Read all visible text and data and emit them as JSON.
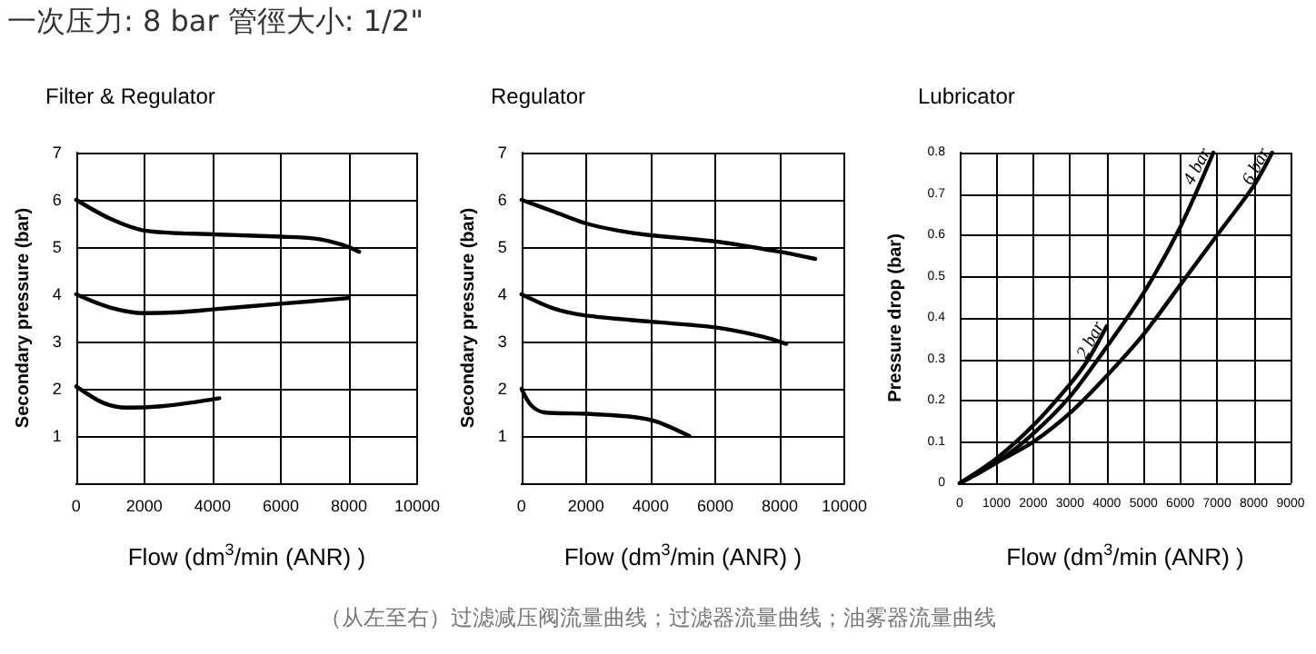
{
  "chart_data": [
    {
      "type": "line",
      "title": "Filter & Regulator",
      "xlabel": "Flow (dm$^{3}$/min (ANR) )",
      "ylabel": "Secondary pressure (bar)",
      "annotations": [
        "一次压力: 8 bar 管徑大小: 1/2\""
      ],
      "xlim": [
        0,
        10000
      ],
      "xticks": [
        0,
        2000,
        4000,
        6000,
        8000,
        10000
      ],
      "ylim": [
        0,
        7
      ],
      "yticks": [
        {
          "value": 0,
          "label": null
        },
        1,
        2,
        3,
        4,
        5,
        6,
        7
      ],
      "grid": true,
      "marker": "none",
      "line_style": "solid",
      "series": [
        {
          "color": "#000000",
          "x": [
            0,
            1000,
            2000,
            4000,
            6000,
            7000,
            7800,
            8300
          ],
          "values": [
            6,
            5.6,
            5.35,
            5.27,
            5.22,
            5.18,
            5.05,
            4.9
          ]
        },
        {
          "color": "#000000",
          "x": [
            0,
            1000,
            2000,
            3000,
            4000,
            6000,
            8000
          ],
          "values": [
            4,
            3.72,
            3.6,
            3.62,
            3.68,
            3.8,
            3.92
          ]
        },
        {
          "color": "#000000",
          "x": [
            0,
            800,
            1500,
            2500,
            3500,
            4200
          ],
          "values": [
            2.05,
            1.7,
            1.6,
            1.63,
            1.72,
            1.8
          ]
        }
      ]
    },
    {
      "type": "line",
      "title": "Regulator",
      "xlabel": "Flow (dm$^{3}$/min (ANR) )",
      "ylabel": "Secondary pressure (bar)",
      "xlim": [
        0,
        10000
      ],
      "xticks": [
        0,
        2000,
        4000,
        6000,
        8000,
        10000
      ],
      "ylim": [
        0,
        7
      ],
      "yticks": [
        {
          "value": 0,
          "label": null
        },
        1,
        2,
        3,
        4,
        5,
        6,
        7
      ],
      "grid": true,
      "marker": "none",
      "line_style": "solid",
      "series": [
        {
          "color": "#000000",
          "x": [
            0,
            1000,
            2000,
            3000,
            4000,
            6000,
            8000,
            9100
          ],
          "values": [
            6,
            5.75,
            5.5,
            5.35,
            5.25,
            5.12,
            4.9,
            4.75
          ]
        },
        {
          "color": "#000000",
          "x": [
            0,
            1000,
            2000,
            4000,
            6000,
            7500,
            8200
          ],
          "values": [
            4,
            3.7,
            3.55,
            3.42,
            3.3,
            3.1,
            2.95
          ]
        },
        {
          "color": "#000000",
          "x": [
            0,
            300,
            700,
            2000,
            3500,
            4200,
            5200
          ],
          "values": [
            2,
            1.65,
            1.5,
            1.47,
            1.4,
            1.3,
            1.0
          ]
        }
      ]
    },
    {
      "type": "line",
      "title": "Lubricator",
      "xlabel": "Flow (dm$^{3}$/min (ANR) )",
      "ylabel": "Pressure drop (bar)",
      "annotations": [
        "（从左至右）过滤减压阀流量曲线；过滤器流量曲线；油雾器流量曲线"
      ],
      "xlim": [
        0,
        9000
      ],
      "xticks": [
        0,
        1000,
        2000,
        3000,
        4000,
        5000,
        6000,
        7000,
        8000,
        9000
      ],
      "ylim": [
        0,
        0.8
      ],
      "yticks": [
        0,
        0.1,
        0.2,
        0.3,
        0.4,
        0.5,
        0.6,
        0.7,
        0.8
      ],
      "grid": true,
      "marker": "none",
      "line_style": "solid",
      "series": [
        {
          "name": "2 bar",
          "color": "#000000",
          "x": [
            0,
            1000,
            2000,
            3000,
            3500,
            4000
          ],
          "values": [
            0,
            0.06,
            0.14,
            0.24,
            0.3,
            0.38
          ]
        },
        {
          "name": "4 bar",
          "color": "#000000",
          "x": [
            0,
            1000,
            2000,
            3000,
            4000,
            5000,
            6000,
            6900
          ],
          "values": [
            0,
            0.05,
            0.12,
            0.21,
            0.33,
            0.46,
            0.62,
            0.8
          ]
        },
        {
          "name": "6 bar",
          "color": "#000000",
          "x": [
            0,
            1000,
            2000,
            3000,
            4000,
            5000,
            6000,
            7000,
            8000,
            8500
          ],
          "values": [
            0,
            0.05,
            0.1,
            0.17,
            0.26,
            0.36,
            0.48,
            0.6,
            0.72,
            0.8
          ]
        }
      ]
    }
  ]
}
